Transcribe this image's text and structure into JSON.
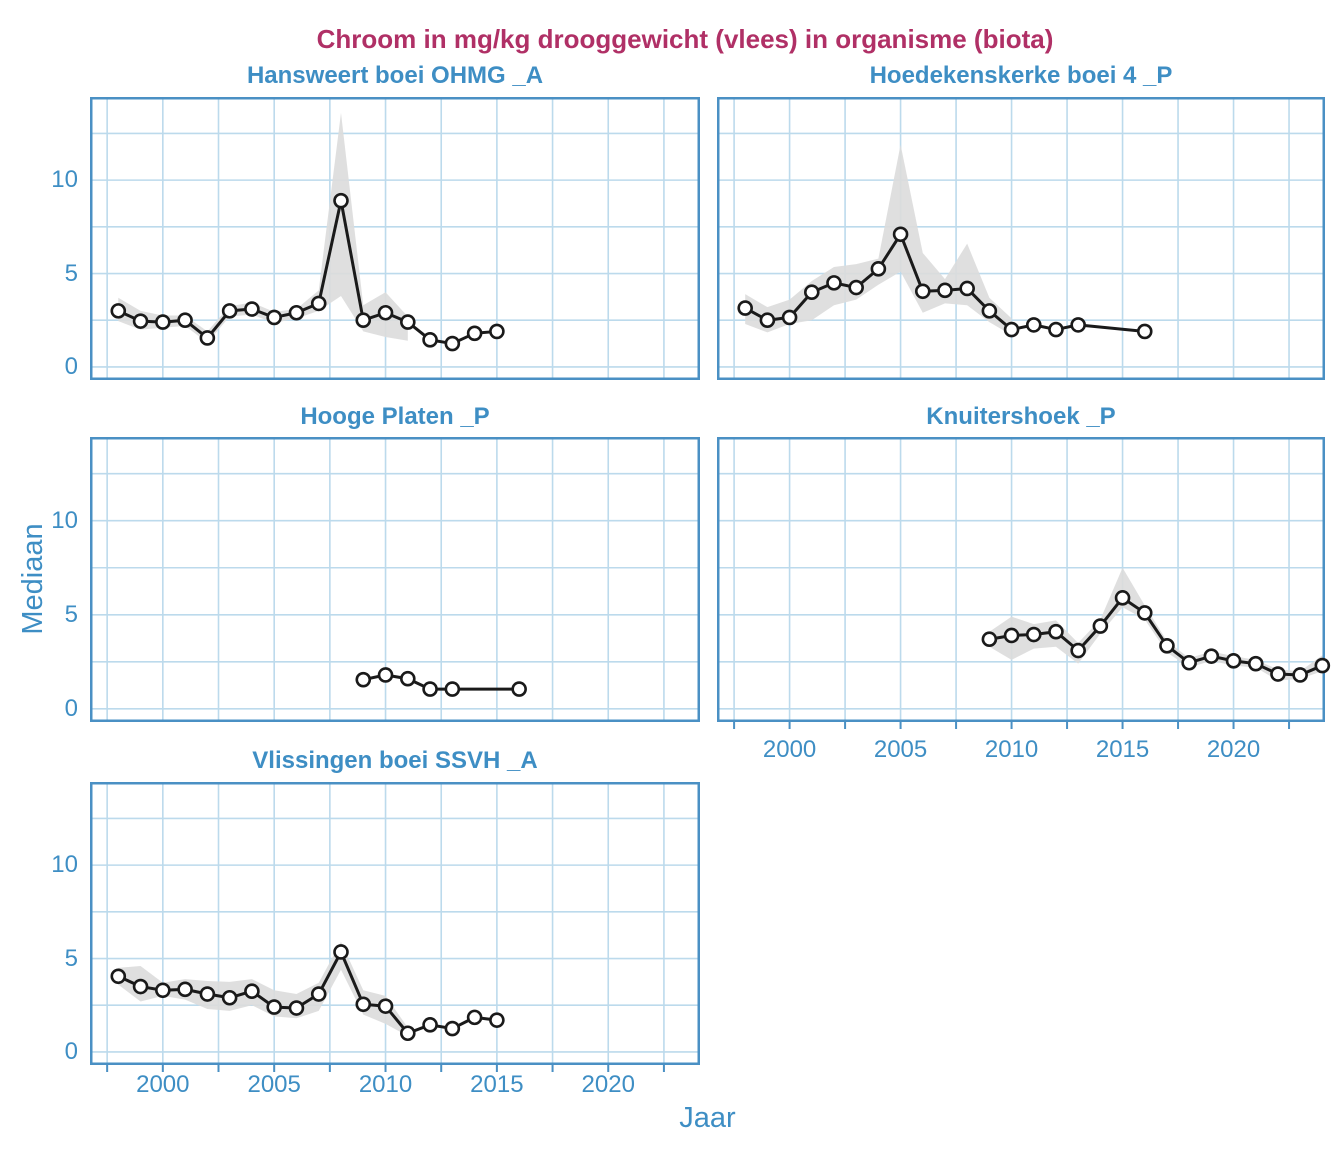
{
  "title": {
    "text": "Chroom in mg/kg drooggewicht (vlees) in organisme (biota)",
    "color": "#B03066"
  },
  "colors": {
    "accent_blue": "#3E8EC4",
    "panel_border": "#4A90C4",
    "grid_blue": "#BCDAEC",
    "line_black": "#1A1A1A",
    "marker_fill": "#FFFFFF",
    "band_gray": "#DBDBDB"
  },
  "chart_data": {
    "type": "line",
    "title": "Chroom in mg/kg drooggewicht (vlees) in organisme (biota)",
    "x_label": "Jaar",
    "y_label": "Mediaan",
    "x_domain": [
      1996.73,
      2024.12
    ],
    "y_domain": [
      -0.7,
      14.45
    ],
    "x_ticks": [
      2000,
      2005,
      2010,
      2015,
      2020
    ],
    "y_ticks": [
      0,
      5,
      10
    ],
    "x_grid": [
      1997.5,
      2000,
      2002.5,
      2005,
      2007.5,
      2010,
      2012.5,
      2015,
      2017.5,
      2020,
      2022.5
    ],
    "y_grid": [
      0,
      2.5,
      5,
      7.5,
      10,
      12.5
    ],
    "grid_on": true,
    "legend": "none",
    "panels": [
      {
        "name": "Hansweert boei OHMG _A",
        "x": [
          1998,
          1999,
          2000,
          2001,
          2002,
          2003,
          2004,
          2005,
          2006,
          2007,
          2008,
          2009,
          2010,
          2011,
          2012,
          2013,
          2014,
          2015
        ],
        "y": [
          3.0,
          2.45,
          2.4,
          2.5,
          1.55,
          3.0,
          3.1,
          2.65,
          2.9,
          3.4,
          8.9,
          2.5,
          2.9,
          2.4,
          1.45,
          1.25,
          1.8,
          1.9
        ],
        "band": {
          "x": [
            1998,
            1999,
            2000,
            2001,
            2002,
            2003,
            2004,
            2005,
            2006,
            2007,
            2008,
            2009,
            2010,
            2011
          ],
          "upper": [
            3.7,
            3.0,
            2.75,
            2.75,
            1.9,
            3.25,
            3.45,
            2.95,
            3.1,
            4.1,
            13.6,
            3.3,
            4.0,
            2.7
          ],
          "lower": [
            2.45,
            2.0,
            2.1,
            2.2,
            1.3,
            2.7,
            2.8,
            2.35,
            2.6,
            3.0,
            3.8,
            1.9,
            1.6,
            1.4
          ]
        }
      },
      {
        "name": "Hoedekenskerke boei 4 _P",
        "x": [
          1998,
          1999,
          2000,
          2001,
          2002,
          2003,
          2004,
          2005,
          2006,
          2007,
          2008,
          2009,
          2010,
          2011,
          2012,
          2013,
          2016
        ],
        "y": [
          3.15,
          2.5,
          2.65,
          4.0,
          4.5,
          4.25,
          5.25,
          7.1,
          4.05,
          4.1,
          4.2,
          3.0,
          2.0,
          2.25,
          2.0,
          2.25,
          1.9
        ],
        "band": {
          "x": [
            1998,
            1999,
            2000,
            2001,
            2002,
            2003,
            2004,
            2005,
            2006,
            2007,
            2008,
            2009,
            2010
          ],
          "upper": [
            3.9,
            3.2,
            3.6,
            4.6,
            5.35,
            5.5,
            5.8,
            11.9,
            6.1,
            4.7,
            6.6,
            3.7,
            2.6
          ],
          "lower": [
            2.3,
            1.85,
            2.3,
            2.5,
            3.3,
            3.6,
            4.4,
            5.1,
            2.9,
            3.4,
            3.3,
            2.4,
            1.7
          ]
        }
      },
      {
        "name": "Hooge Platen _P",
        "x": [
          2009,
          2010,
          2011,
          2012,
          2013,
          2016
        ],
        "y": [
          1.55,
          1.8,
          1.6,
          1.05,
          1.05,
          1.05
        ],
        "band": null
      },
      {
        "name": "Knuitershoek _P",
        "x": [
          2009,
          2010,
          2011,
          2012,
          2013,
          2014,
          2015,
          2016,
          2017,
          2018,
          2019,
          2020,
          2021,
          2022,
          2023,
          2024
        ],
        "y": [
          3.7,
          3.9,
          3.95,
          4.1,
          3.1,
          4.4,
          5.9,
          5.1,
          3.35,
          2.45,
          2.8,
          2.55,
          2.4,
          1.85,
          1.8,
          2.3
        ],
        "band": {
          "x": [
            2009,
            2010,
            2011,
            2012,
            2013,
            2014,
            2015,
            2016,
            2017,
            2018,
            2019,
            2020,
            2021,
            2022,
            2023,
            2024
          ],
          "upper": [
            4.1,
            4.9,
            4.5,
            4.7,
            3.5,
            4.75,
            7.5,
            5.5,
            3.6,
            2.7,
            3.05,
            2.8,
            2.6,
            2.1,
            2.0,
            2.85
          ],
          "lower": [
            3.3,
            2.6,
            3.2,
            3.3,
            2.4,
            4.0,
            5.4,
            4.75,
            3.0,
            2.2,
            2.55,
            2.3,
            2.2,
            1.5,
            1.6,
            2.0
          ]
        }
      },
      {
        "name": "Vlissingen boei SSVH _A",
        "x": [
          1998,
          1999,
          2000,
          2001,
          2002,
          2003,
          2004,
          2005,
          2006,
          2007,
          2008,
          2009,
          2010,
          2011,
          2012,
          2013,
          2014,
          2015
        ],
        "y": [
          4.05,
          3.5,
          3.3,
          3.35,
          3.1,
          2.9,
          3.25,
          2.4,
          2.35,
          3.1,
          5.35,
          2.55,
          2.45,
          1.0,
          1.45,
          1.25,
          1.85,
          1.7
        ],
        "band": {
          "x": [
            1998,
            1999,
            2000,
            2001,
            2002,
            2003,
            2004,
            2005,
            2006,
            2007,
            2008,
            2009,
            2010,
            2011
          ],
          "upper": [
            4.5,
            4.6,
            3.7,
            3.9,
            3.8,
            3.75,
            3.9,
            3.3,
            3.1,
            3.7,
            5.9,
            3.3,
            3.0,
            1.3
          ],
          "lower": [
            3.6,
            2.7,
            3.0,
            2.8,
            2.3,
            2.2,
            2.5,
            1.9,
            1.8,
            2.2,
            4.4,
            2.0,
            1.5,
            0.85
          ]
        }
      }
    ]
  }
}
